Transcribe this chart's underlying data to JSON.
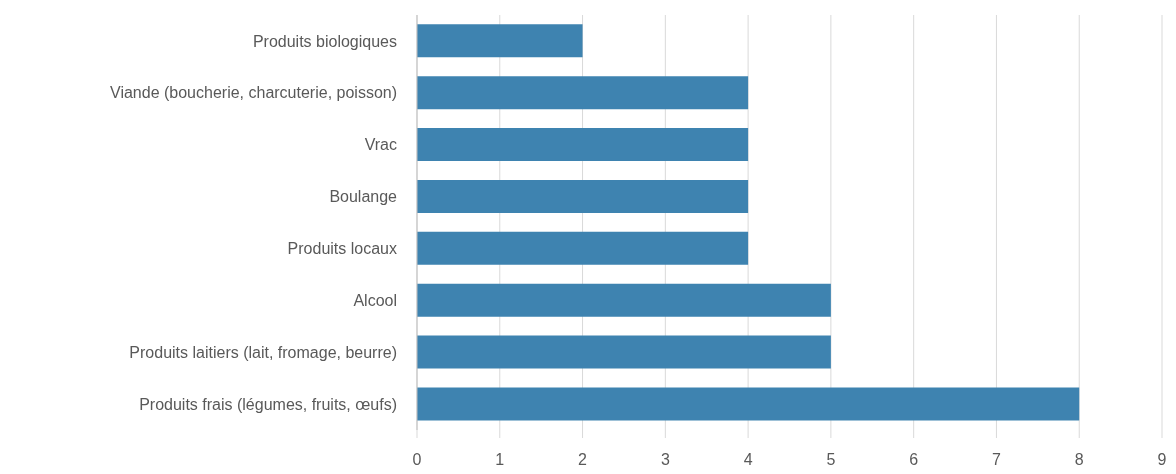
{
  "chart_data": {
    "type": "bar",
    "orientation": "horizontal",
    "categories": [
      "Produits biologiques",
      "Viande (boucherie, charcuterie, poisson)",
      "Vrac",
      "Boulange",
      "Produits locaux",
      "Alcool",
      "Produits laitiers (lait, fromage, beurre)",
      "Produits frais (légumes, fruits, œufs)"
    ],
    "values": [
      2,
      4,
      4,
      4,
      4,
      5,
      5,
      8
    ],
    "color": "#3e83b0",
    "xlim": [
      0,
      9
    ],
    "xticks": [
      0,
      1,
      2,
      3,
      4,
      5,
      6,
      7,
      8,
      9
    ],
    "grid": "x"
  }
}
